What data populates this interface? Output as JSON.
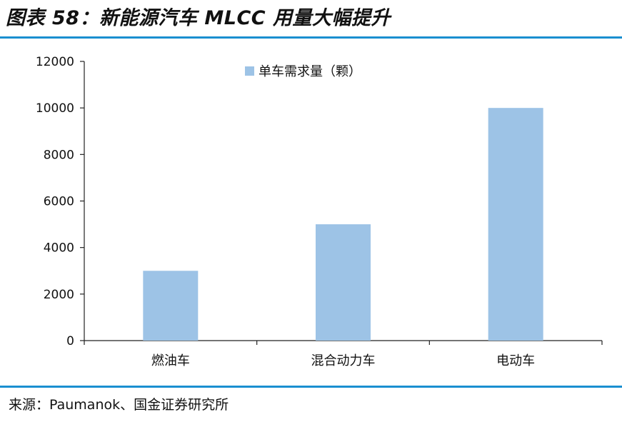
{
  "header": {
    "title": "图表 58：新能源汽车 MLCC 用量大幅提升"
  },
  "footer": {
    "source": "来源：Paumanok、国金证券研究所"
  },
  "colors": {
    "accent_rule": "#1a8fd0",
    "bar": "#9dc3e6",
    "axis": "#222222"
  },
  "chart_data": {
    "type": "bar",
    "categories": [
      "燃油车",
      "混合动力车",
      "电动车"
    ],
    "series": [
      {
        "name": "单车需求量（颗）",
        "values": [
          3000,
          5000,
          10000
        ]
      }
    ],
    "yticks": [
      "0",
      "2000",
      "4000",
      "6000",
      "8000",
      "10000",
      "12000"
    ],
    "ylim": [
      0,
      12000
    ],
    "xlabel": "",
    "ylabel": "",
    "grid": false,
    "legend_position": "top-center"
  }
}
